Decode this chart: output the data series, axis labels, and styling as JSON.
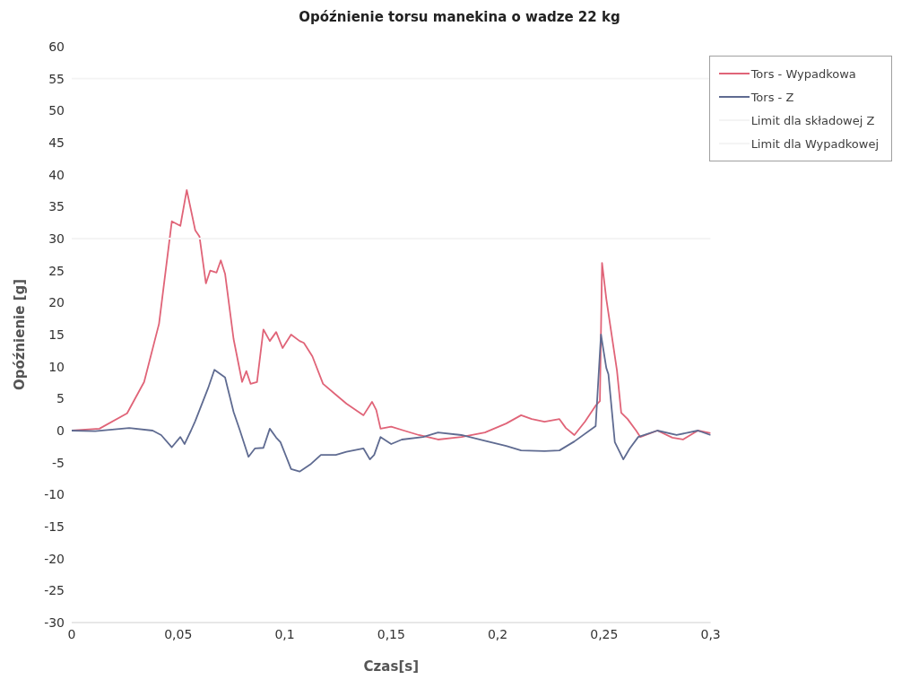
{
  "chart_data": {
    "type": "line",
    "title": "Opóźnienie torsu manekina o wadze 22 kg",
    "xlabel": "Czas[s]",
    "ylabel": "Opóźnienie [g]",
    "xlim": [
      0,
      0.3
    ],
    "xticks": [
      {
        "value": 0,
        "label": "0"
      },
      {
        "value": 0.05,
        "label": "0,05"
      },
      {
        "value": 0.1,
        "label": "0,1"
      },
      {
        "value": 0.15,
        "label": "0,15"
      },
      {
        "value": 0.2,
        "label": "0,2"
      },
      {
        "value": 0.25,
        "label": "0,25"
      },
      {
        "value": 0.3,
        "label": "0,3"
      }
    ],
    "ylim": [
      -30,
      60
    ],
    "yticks": [
      -30,
      -25,
      -20,
      -15,
      -10,
      -5,
      0,
      5,
      10,
      15,
      20,
      25,
      30,
      35,
      40,
      45,
      50,
      55,
      60
    ],
    "grid": false,
    "legend": "top right",
    "marker": "none",
    "line_style": "solid",
    "series": [
      {
        "name": "Tors - Wypadkowa",
        "color": "#e06478",
        "x": [
          0,
          0.013,
          0.026,
          0.034,
          0.041,
          0.047,
          0.051,
          0.054,
          0.058,
          0.06,
          0.063,
          0.065,
          0.068,
          0.07,
          0.072,
          0.076,
          0.08,
          0.082,
          0.084,
          0.087,
          0.09,
          0.093,
          0.096,
          0.099,
          0.103,
          0.107,
          0.109,
          0.113,
          0.118,
          0.124,
          0.129,
          0.137,
          0.141,
          0.143,
          0.145,
          0.15,
          0.156,
          0.163,
          0.172,
          0.183,
          0.194,
          0.204,
          0.211,
          0.216,
          0.222,
          0.229,
          0.232,
          0.236,
          0.241,
          0.246,
          0.248,
          0.249,
          0.251,
          0.256,
          0.258,
          0.261,
          0.265,
          0.267,
          0.275,
          0.282,
          0.287,
          0.294,
          0.3
        ],
        "values": [
          0,
          0.3,
          2.7,
          7.6,
          16.7,
          32.7,
          32,
          37.6,
          31.3,
          30.3,
          23,
          25,
          24.7,
          26.6,
          24.5,
          14.3,
          7.6,
          9.3,
          7.3,
          7.6,
          15.8,
          14,
          15.4,
          12.9,
          15,
          14,
          13.7,
          11.6,
          7.3,
          5.6,
          4.2,
          2.4,
          4.5,
          3.2,
          0.3,
          0.6,
          0,
          -0.7,
          -1.4,
          -1,
          -0.3,
          1.1,
          2.4,
          1.8,
          1.4,
          1.8,
          0.4,
          -0.7,
          1.4,
          3.9,
          4.6,
          26.2,
          20.6,
          9.4,
          2.8,
          1.8,
          0,
          -1,
          0,
          -1.1,
          -1.4,
          0,
          -0.4
        ]
      },
      {
        "name": "Tors - Z",
        "color": "#5f6b91",
        "x": [
          0,
          0.011,
          0.027,
          0.038,
          0.042,
          0.047,
          0.051,
          0.053,
          0.056,
          0.058,
          0.064,
          0.067,
          0.072,
          0.076,
          0.079,
          0.083,
          0.086,
          0.09,
          0.093,
          0.096,
          0.098,
          0.103,
          0.107,
          0.112,
          0.117,
          0.124,
          0.129,
          0.137,
          0.14,
          0.142,
          0.145,
          0.15,
          0.155,
          0.165,
          0.172,
          0.183,
          0.194,
          0.204,
          0.211,
          0.222,
          0.229,
          0.236,
          0.246,
          0.2485,
          0.251,
          0.252,
          0.255,
          0.259,
          0.262,
          0.266,
          0.275,
          0.284,
          0.294,
          0.3
        ],
        "values": [
          0,
          -0.1,
          0.4,
          0,
          -0.7,
          -2.6,
          -1,
          -2.1,
          0,
          1.5,
          6.6,
          9.5,
          8.3,
          2.9,
          0,
          -4.1,
          -2.8,
          -2.7,
          0.3,
          -1.1,
          -1.8,
          -6,
          -6.4,
          -5.3,
          -3.8,
          -3.8,
          -3.3,
          -2.8,
          -4.5,
          -3.8,
          -1,
          -2.1,
          -1.4,
          -1,
          -0.3,
          -0.7,
          -1.6,
          -2.4,
          -3.1,
          -3.2,
          -3.1,
          -1.7,
          0.7,
          15,
          9.8,
          8.8,
          -1.8,
          -4.5,
          -2.8,
          -1,
          0,
          -0.7,
          0,
          -0.7
        ]
      },
      {
        "name": "Limit dla składowej Z",
        "color": "#f4f4f4",
        "x": [
          0,
          0.3
        ],
        "values": [
          30,
          30
        ]
      },
      {
        "name": "Limit dla Wypadkowej",
        "color": "#f4f4f4",
        "x": [
          0,
          0.3
        ],
        "values": [
          55,
          55
        ]
      }
    ]
  }
}
